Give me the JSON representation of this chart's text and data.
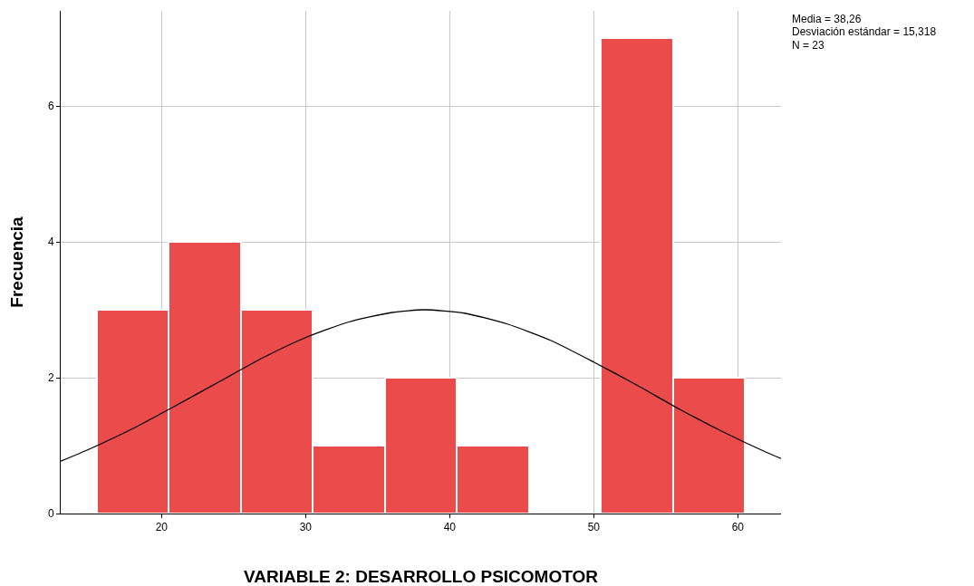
{
  "chart_data": {
    "type": "histogram",
    "xlabel": "VARIABLE 2: DESARROLLO PSICOMOTOR",
    "ylabel": "Frecuencia",
    "bins": [
      15.5,
      20.5,
      25.5,
      30.5,
      35.5,
      40.5,
      45.5,
      50.5,
      55.5,
      60.5
    ],
    "values": [
      3,
      4,
      3,
      1,
      2,
      1,
      0,
      7,
      2
    ],
    "color": "#ec4b4b",
    "series": [
      {
        "type": "line",
        "color": "#000000",
        "x": [
          13,
          15,
          18,
          21,
          24,
          27,
          30,
          33,
          36,
          38.26,
          41,
          44,
          47,
          50,
          53,
          56,
          59,
          62,
          63
        ],
        "values": [
          0.77,
          0.95,
          1.25,
          1.59,
          1.94,
          2.29,
          2.59,
          2.82,
          2.96,
          3.0,
          2.95,
          2.79,
          2.55,
          2.23,
          1.89,
          1.53,
          1.2,
          0.9,
          0.81
        ]
      }
    ],
    "xlim": [
      13,
      63
    ],
    "xticks": [
      20,
      30,
      40,
      50,
      60
    ],
    "ylim": [
      0,
      7.4
    ],
    "yticks": [
      0,
      2,
      4,
      6
    ],
    "grid": true,
    "marker": "none",
    "annotations": [
      "Media = 38,26",
      "Desviación estándar = 15,318",
      "N = 23"
    ]
  }
}
